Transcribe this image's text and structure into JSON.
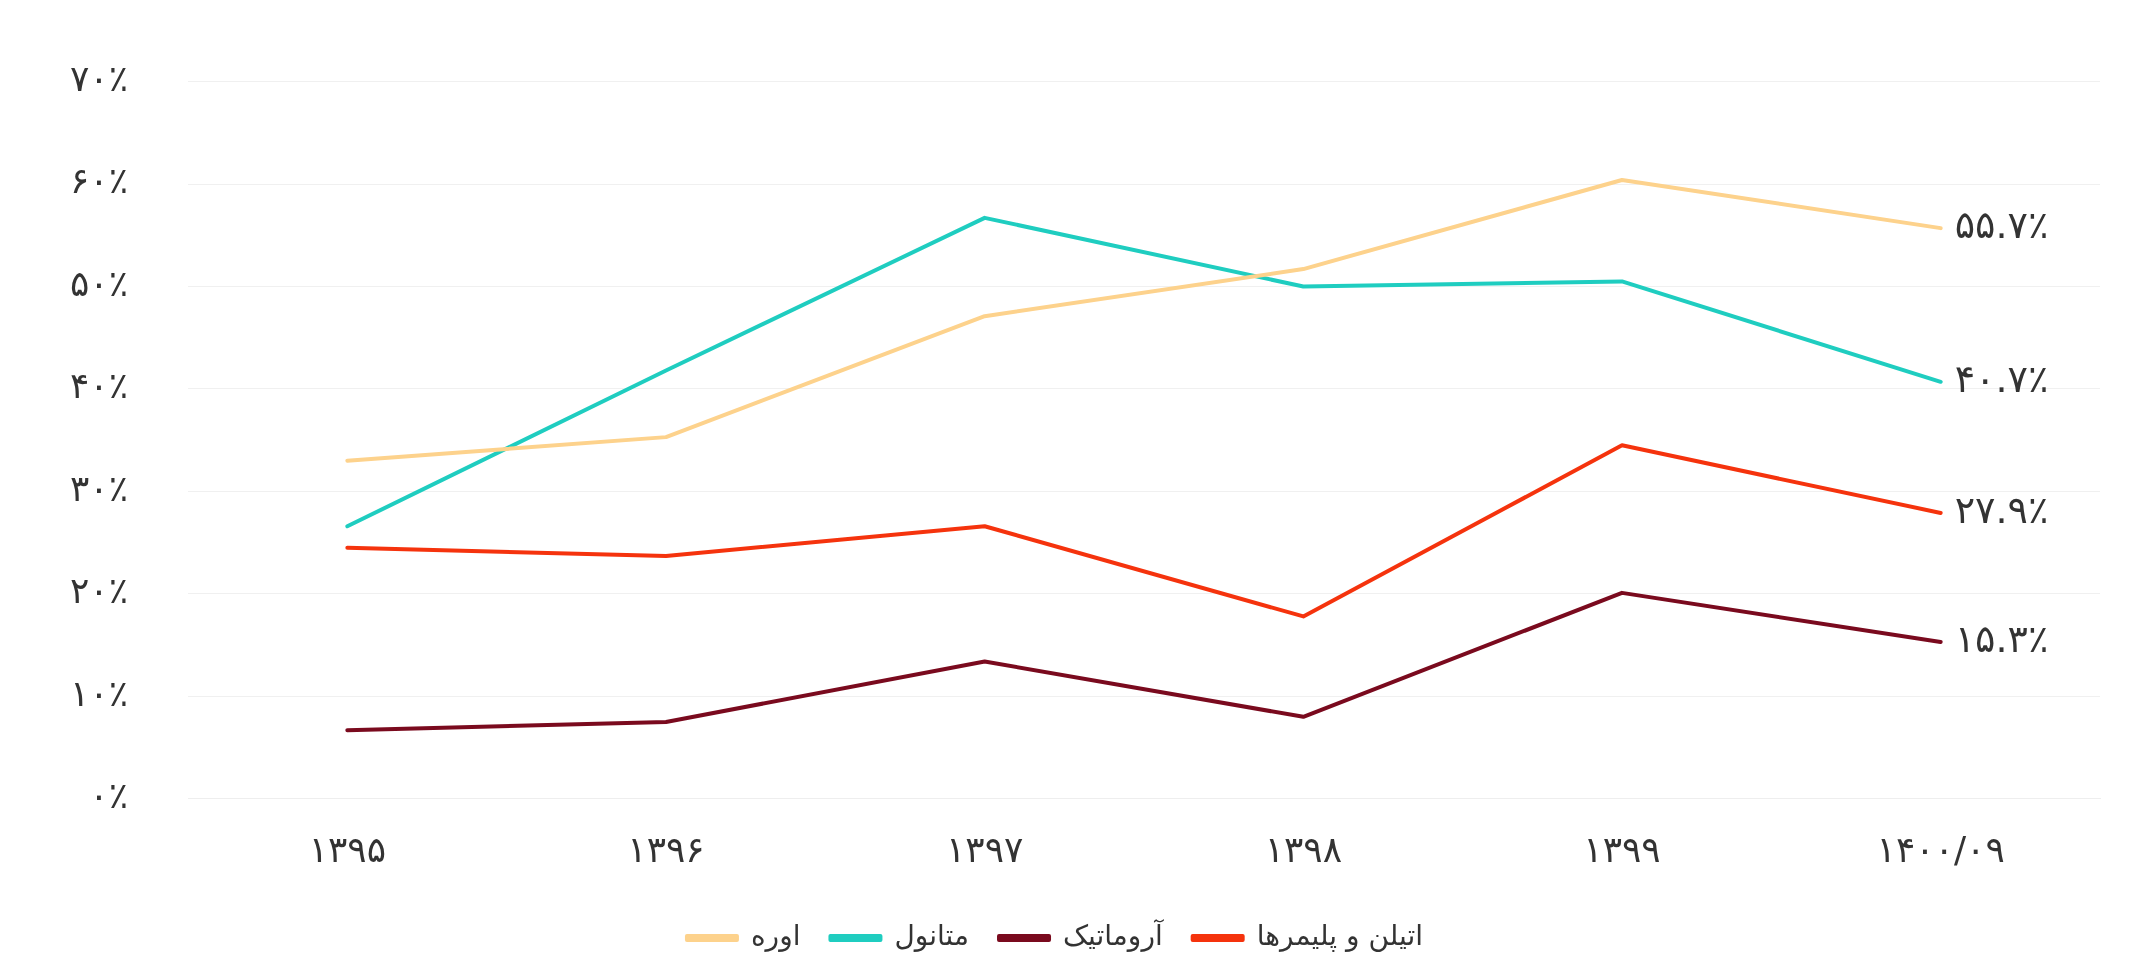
{
  "chart_data": {
    "type": "line",
    "categories": [
      "۱۳۹۵",
      "۱۳۹۶",
      "۱۳۹۷",
      "۱۳۹۸",
      "۱۳۹۹",
      "۱۴۰۰/۰۹"
    ],
    "series": [
      {
        "name": "اوره",
        "color": "#fdd28c",
        "values": [
          33.0,
          35.3,
          47.1,
          51.7,
          60.4,
          55.7
        ],
        "value_labels": [
          null,
          null,
          null,
          null,
          null,
          "۵۵.۷٪"
        ]
      },
      {
        "name": "متانول",
        "color": "#1fcdc0",
        "values": [
          26.6,
          41.8,
          56.7,
          50.0,
          50.5,
          40.7
        ],
        "value_labels": [
          null,
          null,
          null,
          null,
          null,
          "۴۰.۷٪"
        ]
      },
      {
        "name": "آروماتیک",
        "color": "#7a0a1e",
        "values": [
          6.7,
          7.5,
          13.4,
          8.0,
          20.1,
          15.3
        ],
        "value_labels": [
          null,
          null,
          null,
          null,
          null,
          "۱۵.۳٪"
        ]
      },
      {
        "name": "اتیلن و پلیمرها",
        "color": "#f5330d",
        "values": [
          24.5,
          23.7,
          26.6,
          17.8,
          34.5,
          27.9
        ],
        "value_labels": [
          null,
          null,
          null,
          null,
          null,
          "۲۷.۹٪"
        ]
      }
    ],
    "ylim": [
      0,
      70
    ],
    "yticks": [
      {
        "value": 0,
        "label": "۰٪"
      },
      {
        "value": 10,
        "label": "۱۰٪"
      },
      {
        "value": 20,
        "label": "۲۰٪"
      },
      {
        "value": 30,
        "label": "۳۰٪"
      },
      {
        "value": 40,
        "label": "۴۰٪"
      },
      {
        "value": 50,
        "label": "۵۰٪"
      },
      {
        "value": 60,
        "label": "۶۰٪"
      },
      {
        "value": 70,
        "label": "۷۰٪"
      }
    ],
    "grid": "y",
    "legend": "bottom",
    "marker": "none",
    "line_style": "solid"
  }
}
